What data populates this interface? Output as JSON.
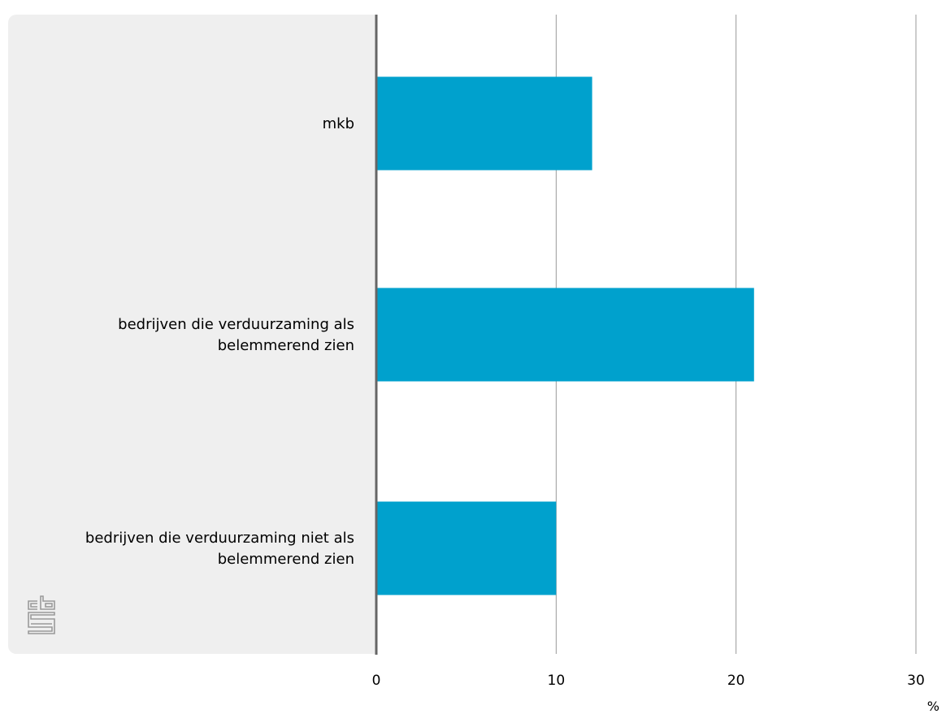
{
  "chart_data": {
    "type": "bar",
    "orientation": "horizontal",
    "categories": [
      [
        "mkb"
      ],
      [
        "bedrijven die verduurzaming als",
        "belemmerend zien"
      ],
      [
        "bedrijven die verduurzaming niet als",
        "belemmerend zien"
      ]
    ],
    "values": [
      12,
      21,
      10
    ],
    "xlim": [
      0,
      30
    ],
    "xticks": [
      0,
      10,
      20,
      30
    ],
    "xtick_labels": [
      "0",
      "10",
      "20",
      "30"
    ],
    "unit_label": "%",
    "grid": "vertical",
    "colors": {
      "bar": "#00a1cd",
      "label_panel": "#efefef",
      "axis": "#666666",
      "grid": "#999999"
    },
    "logo": {
      "icon": "cbs-logo-icon",
      "text": "cbs"
    }
  }
}
